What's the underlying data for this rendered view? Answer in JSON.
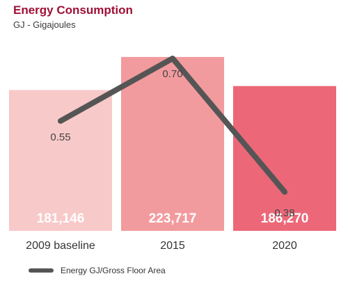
{
  "chart_data": {
    "type": "bar",
    "title": "Energy Consumption",
    "subtitle": "GJ - Gigajoules",
    "categories": [
      "2009 baseline",
      "2015",
      "2020"
    ],
    "series": [
      {
        "values": [
          181146,
          223717,
          186270
        ],
        "labels": [
          "181,146",
          "223,717",
          "186,270"
        ]
      },
      {
        "type": "line",
        "name": "Energy GJ/Gross Floor Area",
        "values": [
          0.55,
          0.7,
          0.38
        ],
        "labels": [
          "0.55",
          "0.70",
          "0.38"
        ]
      }
    ],
    "colors": {
      "bars": [
        "#f8c9c9",
        "#f29b9e",
        "#ec6878"
      ],
      "line": "#555555"
    },
    "legend": "bottom-left"
  }
}
